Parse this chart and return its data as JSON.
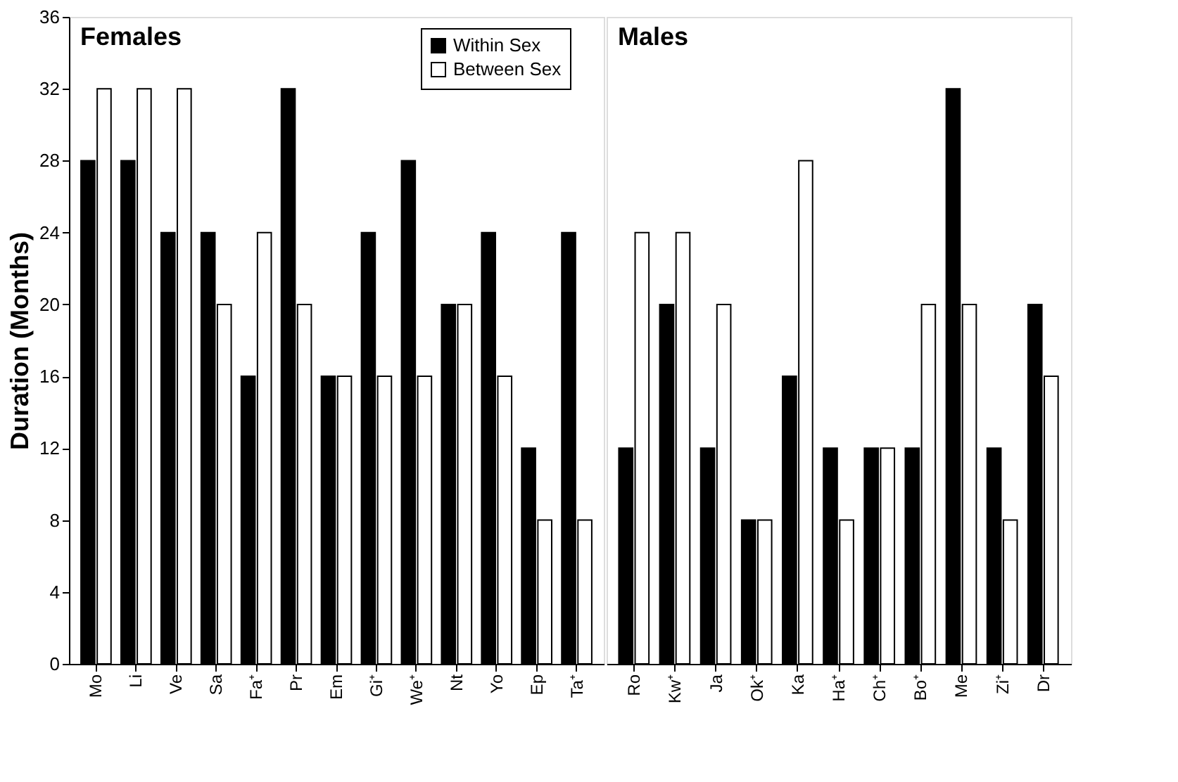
{
  "chart_data": [
    {
      "type": "bar",
      "title": "Females",
      "ylabel": "Duration (Months)",
      "categories": [
        "Mo",
        "Li",
        "Ve",
        "Sa",
        "Fa⁺",
        "Pr",
        "Em",
        "Gi⁺",
        "We⁺",
        "Nt",
        "Yo",
        "Ep",
        "Ta⁺"
      ],
      "series": [
        {
          "name": "Within Sex",
          "color": "#000000",
          "values": [
            28,
            28,
            24,
            24,
            16,
            32,
            16,
            24,
            28,
            20,
            24,
            12,
            24
          ]
        },
        {
          "name": "Between Sex",
          "color": "#ffffff",
          "values": [
            32,
            32,
            32,
            20,
            24,
            20,
            16,
            16,
            16,
            20,
            16,
            8,
            8
          ]
        }
      ],
      "ylim": [
        0,
        36
      ],
      "yticks": [
        0,
        4,
        8,
        12,
        16,
        20,
        24,
        28,
        32,
        36
      ],
      "legend": "top right"
    },
    {
      "type": "bar",
      "title": "Males",
      "categories": [
        "Ro",
        "Kw⁺",
        "Ja",
        "Ok⁺",
        "Ka",
        "Ha⁺",
        "Ch⁺",
        "Bo⁺",
        "Me",
        "Zi⁺",
        "Dr"
      ],
      "series": [
        {
          "color": "#000000",
          "values": [
            12,
            20,
            12,
            8,
            16,
            12,
            12,
            12,
            32,
            12,
            20
          ]
        },
        {
          "color": "#ffffff",
          "values": [
            24,
            24,
            20,
            8,
            28,
            8,
            12,
            20,
            20,
            8,
            16
          ]
        }
      ],
      "ylim": [
        0,
        36
      ],
      "yticks": [
        0,
        4,
        8,
        12,
        16,
        20,
        24,
        28,
        32,
        36
      ],
      "tick_labels": "x"
    }
  ]
}
